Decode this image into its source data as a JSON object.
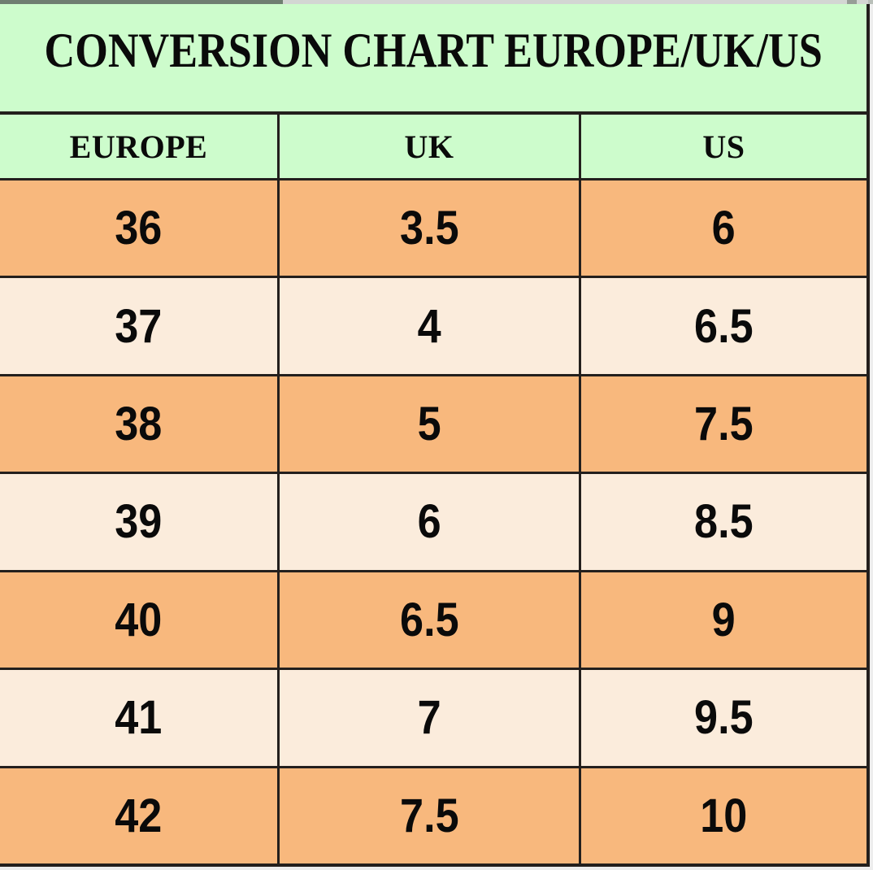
{
  "chart_data": {
    "type": "table",
    "title": "CONVERSION CHART EUROPE/UK/US",
    "columns": [
      "EUROPE",
      "UK",
      "US"
    ],
    "rows": [
      [
        "36",
        "3.5",
        "6"
      ],
      [
        "37",
        "4",
        "6.5"
      ],
      [
        "38",
        "5",
        "7.5"
      ],
      [
        "39",
        "6",
        "8.5"
      ],
      [
        "40",
        "6.5",
        "9"
      ],
      [
        "41",
        "7",
        "9.5"
      ],
      [
        "42",
        "7.5",
        "10"
      ]
    ]
  },
  "colors": {
    "header_bg": "#cdfccc",
    "row_orange": "#f8b87d",
    "row_peach": "#fbecdc",
    "grid_border": "#231f1d",
    "text": "#0a0a0a"
  }
}
